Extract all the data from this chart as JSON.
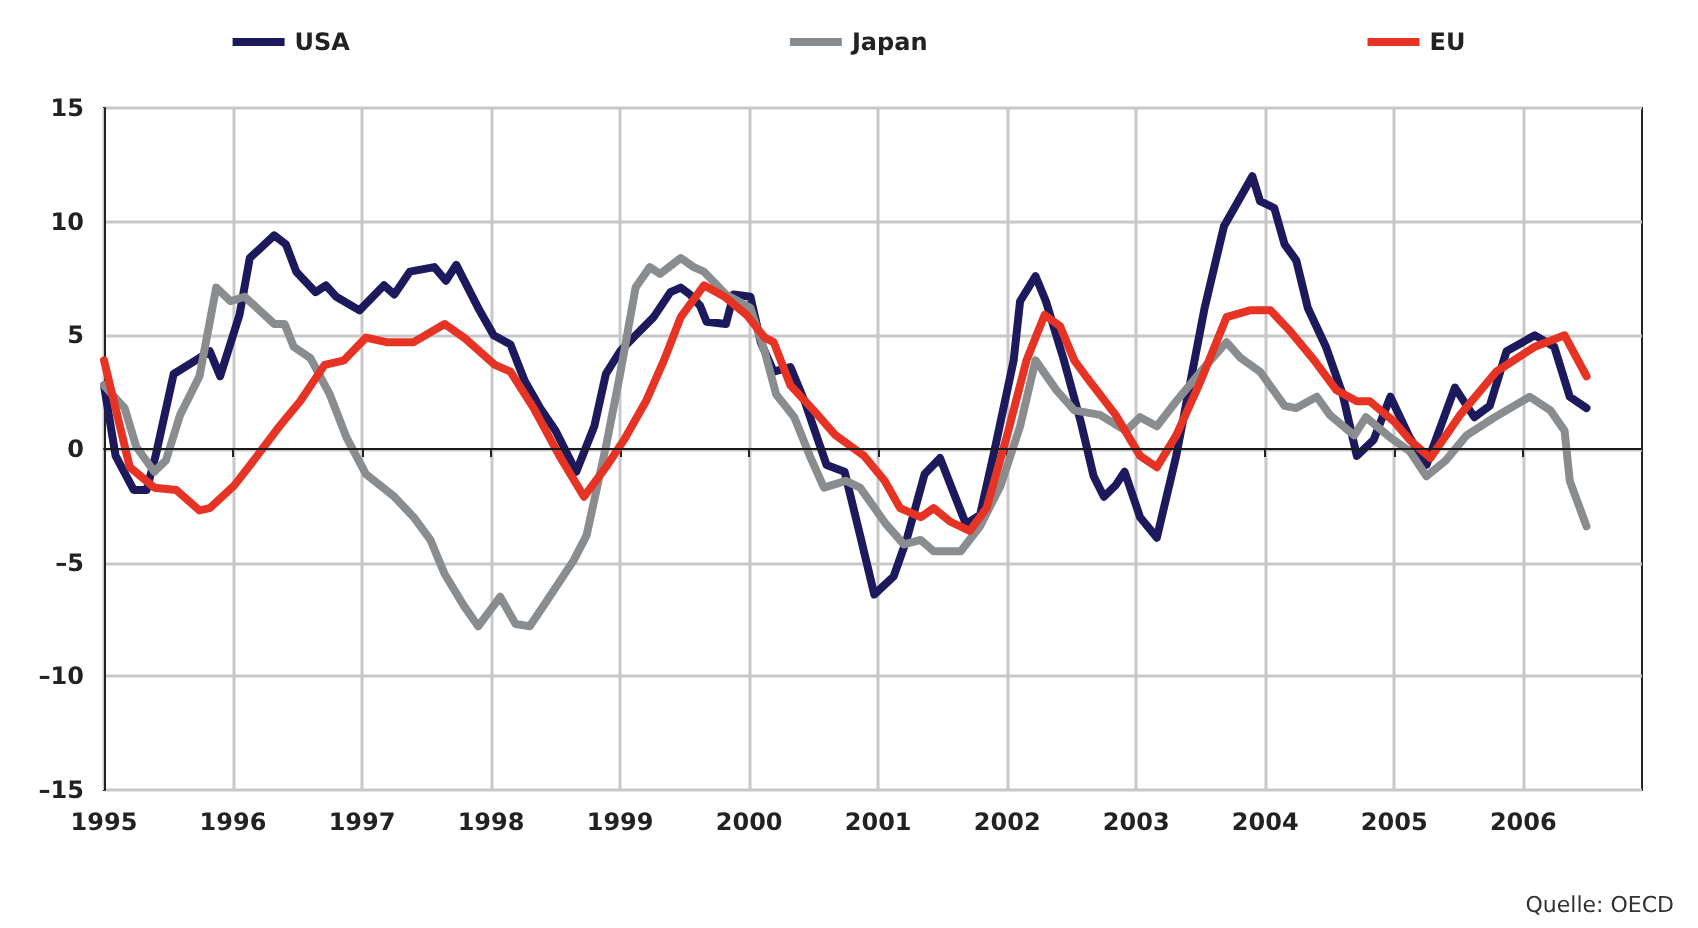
{
  "chart_data": {
    "type": "line",
    "xlim": [
      1995,
      2006.92
    ],
    "xticks": [
      1995,
      1996,
      1997,
      1998,
      1999,
      2000,
      2001,
      2002,
      2003,
      2004,
      2005,
      2006
    ],
    "ylim": [
      -15,
      15
    ],
    "yticks": [
      {
        "value": -15,
        "label": "–15"
      },
      {
        "value": -10,
        "label": "–10"
      },
      {
        "value": -5,
        "label": "–5"
      },
      0,
      5,
      10,
      15
    ],
    "grid": true,
    "legend": "top",
    "marker": "none",
    "line_style": "solid",
    "ref_lines": [
      {
        "axis": "y",
        "value": 0,
        "color": "#1a1a1a"
      }
    ],
    "annotations": [
      "Quelle: OECD"
    ],
    "series": [
      {
        "name": "USA",
        "color": "#1c1a5c",
        "x": [
          1995.0,
          1995.09,
          1995.23,
          1995.33,
          1995.4,
          1995.54,
          1995.71,
          1995.82,
          1995.9,
          1996.05,
          1996.13,
          1996.32,
          1996.41,
          1996.49,
          1996.64,
          1996.72,
          1996.8,
          1996.98,
          1997.17,
          1997.25,
          1997.37,
          1997.56,
          1997.65,
          1997.73,
          1997.91,
          1998.02,
          1998.15,
          1998.26,
          1998.38,
          1998.5,
          1998.66,
          1998.8,
          1998.89,
          1999.0,
          1999.12,
          1999.26,
          1999.39,
          1999.47,
          1999.54,
          1999.62,
          1999.67,
          1999.82,
          1999.88,
          2000.01,
          2000.09,
          2000.19,
          2000.32,
          2000.43,
          2000.6,
          2000.74,
          2000.86,
          2000.97,
          2001.12,
          2001.22,
          2001.36,
          2001.48,
          2001.59,
          2001.68,
          2001.79,
          2001.9,
          2002.05,
          2002.1,
          2002.22,
          2002.3,
          2002.44,
          2002.57,
          2002.67,
          2002.75,
          2002.84,
          2002.91,
          2003.03,
          2003.16,
          2003.31,
          2003.53,
          2003.68,
          2003.9,
          2003.96,
          2004.07,
          2004.15,
          2004.24,
          2004.33,
          2004.47,
          2004.6,
          2004.71,
          2004.84,
          2004.97,
          2005.12,
          2005.25,
          2005.47,
          2005.62,
          2005.74,
          2005.87,
          2006.09,
          2006.24,
          2006.36,
          2006.49
        ],
        "values": [
          2.8,
          -0.3,
          -1.8,
          -1.8,
          -0.3,
          3.3,
          3.9,
          4.3,
          3.2,
          5.9,
          8.4,
          9.4,
          9.0,
          7.8,
          6.9,
          7.2,
          6.7,
          6.1,
          7.2,
          6.8,
          7.8,
          8.0,
          7.4,
          8.1,
          6.1,
          5.0,
          4.6,
          3.0,
          1.8,
          0.8,
          -1.0,
          1.0,
          3.3,
          4.3,
          5.0,
          5.8,
          6.9,
          7.1,
          6.8,
          6.3,
          5.6,
          5.5,
          6.8,
          6.7,
          4.7,
          3.4,
          3.6,
          2.1,
          -0.7,
          -1.0,
          -3.8,
          -6.4,
          -5.6,
          -4.0,
          -1.1,
          -0.4,
          -2.0,
          -3.3,
          -2.9,
          -0.1,
          3.9,
          6.5,
          7.6,
          6.5,
          3.9,
          1.2,
          -1.2,
          -2.1,
          -1.6,
          -1.0,
          -3.0,
          -3.9,
          -0.3,
          6.2,
          9.8,
          12.0,
          10.9,
          10.6,
          9.0,
          8.3,
          6.2,
          4.5,
          2.4,
          -0.3,
          0.4,
          2.3,
          0.5,
          -0.7,
          2.7,
          1.4,
          1.9,
          4.3,
          5.0,
          4.5,
          2.3,
          1.8
        ]
      },
      {
        "name": "Japan",
        "color": "#8a8d8f",
        "x": [
          1995.0,
          1995.16,
          1995.25,
          1995.39,
          1995.48,
          1995.59,
          1995.74,
          1995.87,
          1995.98,
          1996.09,
          1996.32,
          1996.4,
          1996.47,
          1996.6,
          1996.75,
          1996.88,
          1997.03,
          1997.25,
          1997.4,
          1997.53,
          1997.64,
          1997.79,
          1997.9,
          1998.07,
          1998.19,
          1998.3,
          1998.43,
          1998.64,
          1998.74,
          1998.89,
          1999.0,
          1999.12,
          1999.23,
          1999.31,
          1999.47,
          1999.57,
          1999.65,
          1999.82,
          2000.01,
          2000.12,
          2000.21,
          2000.35,
          2000.47,
          2000.58,
          2000.75,
          2000.86,
          2001.06,
          2001.2,
          2001.33,
          2001.43,
          2001.64,
          2001.79,
          2001.95,
          2002.1,
          2002.22,
          2002.38,
          2002.52,
          2002.72,
          2002.92,
          2003.03,
          2003.16,
          2003.31,
          2003.53,
          2003.7,
          2003.81,
          2003.96,
          2004.15,
          2004.24,
          2004.4,
          2004.5,
          2004.69,
          2004.78,
          2004.97,
          2005.12,
          2005.25,
          2005.4,
          2005.56,
          2005.78,
          2006.05,
          2006.21,
          2006.32,
          2006.36,
          2006.49
        ],
        "values": [
          2.8,
          1.8,
          0.1,
          -1.0,
          -0.5,
          1.5,
          3.2,
          7.1,
          6.5,
          6.7,
          5.5,
          5.5,
          4.5,
          4.0,
          2.4,
          0.5,
          -1.1,
          -2.1,
          -3.0,
          -4.0,
          -5.5,
          -6.9,
          -7.8,
          -6.5,
          -7.7,
          -7.8,
          -6.7,
          -4.9,
          -3.8,
          0.1,
          3.3,
          7.1,
          8.0,
          7.7,
          8.4,
          8.0,
          7.8,
          6.8,
          6.2,
          4.3,
          2.4,
          1.4,
          -0.3,
          -1.7,
          -1.4,
          -1.7,
          -3.3,
          -4.2,
          -4.0,
          -4.5,
          -4.5,
          -3.4,
          -1.6,
          1.0,
          3.9,
          2.6,
          1.7,
          1.5,
          0.8,
          1.4,
          1.0,
          2.1,
          3.6,
          4.7,
          4.0,
          3.4,
          1.9,
          1.8,
          2.3,
          1.5,
          0.6,
          1.4,
          0.5,
          -0.1,
          -1.2,
          -0.5,
          0.6,
          1.4,
          2.3,
          1.7,
          0.8,
          -1.4,
          -3.4
        ]
      },
      {
        "name": "EU",
        "color": "#e63323",
        "x": [
          1995.0,
          1995.2,
          1995.39,
          1995.56,
          1995.74,
          1995.82,
          1996.01,
          1996.16,
          1996.36,
          1996.52,
          1996.71,
          1996.86,
          1997.03,
          1997.19,
          1997.4,
          1997.64,
          1997.79,
          1998.03,
          1998.15,
          1998.33,
          1998.53,
          1998.72,
          1998.89,
          1999.03,
          1999.2,
          1999.34,
          1999.47,
          1999.65,
          1999.81,
          1999.98,
          2000.12,
          2000.19,
          2000.32,
          2000.5,
          2000.67,
          2000.89,
          2001.05,
          2001.17,
          2001.33,
          2001.43,
          2001.56,
          2001.71,
          2001.84,
          2001.99,
          2002.15,
          2002.29,
          2002.41,
          2002.52,
          2002.61,
          2002.84,
          2003.03,
          2003.16,
          2003.31,
          2003.5,
          2003.7,
          2003.88,
          2004.04,
          2004.19,
          2004.38,
          2004.55,
          2004.71,
          2004.81,
          2005.0,
          2005.12,
          2005.28,
          2005.51,
          2005.79,
          2006.09,
          2006.32,
          2006.49
        ],
        "values": [
          3.9,
          -0.8,
          -1.7,
          -1.8,
          -2.7,
          -2.6,
          -1.6,
          -0.5,
          1.0,
          2.1,
          3.7,
          3.9,
          4.9,
          4.7,
          4.7,
          5.5,
          4.9,
          3.7,
          3.4,
          1.8,
          -0.3,
          -2.1,
          -0.8,
          0.4,
          2.1,
          3.9,
          5.8,
          7.2,
          6.7,
          5.9,
          4.9,
          4.7,
          2.8,
          1.7,
          0.6,
          -0.3,
          -1.4,
          -2.6,
          -3.0,
          -2.6,
          -3.2,
          -3.6,
          -2.6,
          0.4,
          3.9,
          5.9,
          5.4,
          3.9,
          3.2,
          1.5,
          -0.3,
          -0.8,
          0.6,
          3.0,
          5.8,
          6.1,
          6.1,
          5.2,
          3.9,
          2.6,
          2.1,
          2.1,
          1.2,
          0.4,
          -0.4,
          1.5,
          3.4,
          4.5,
          5.0,
          3.2
        ]
      }
    ]
  }
}
